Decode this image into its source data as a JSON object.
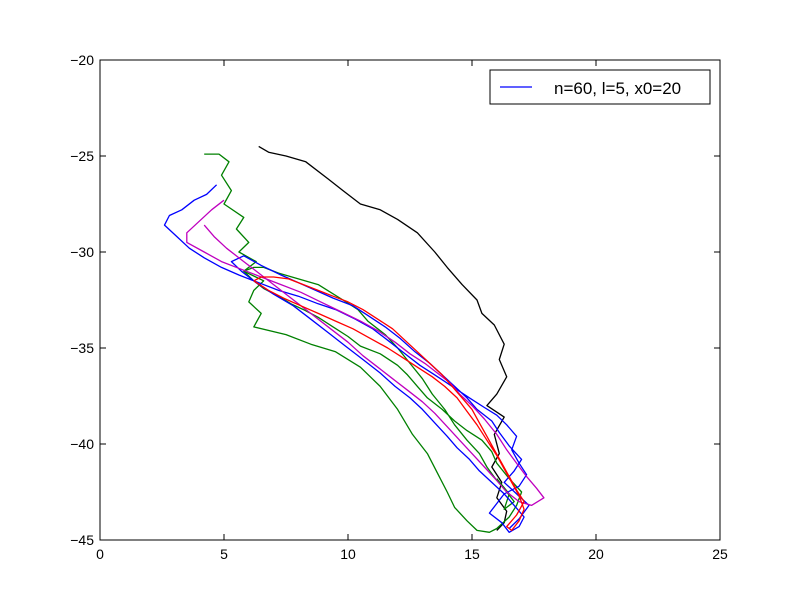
{
  "chart_data": {
    "type": "line",
    "title": "",
    "xlabel": "",
    "ylabel": "",
    "xlim": [
      0,
      25
    ],
    "ylim": [
      -45,
      -20
    ],
    "x_ticks": [
      0,
      5,
      10,
      15,
      20,
      25
    ],
    "y_ticks": [
      -45,
      -40,
      -35,
      -30,
      -25,
      -20
    ],
    "x_tick_labels": [
      "0",
      "5",
      "10",
      "15",
      "20",
      "25"
    ],
    "y_tick_labels": [
      "−45",
      "−40",
      "−35",
      "−30",
      "−25",
      "−20"
    ],
    "grid": false,
    "legend": {
      "position": "top-right",
      "entries": [
        {
          "label": "n=60, l=5, x0=20",
          "color": "#0000ff"
        }
      ]
    },
    "series": [
      {
        "color": "#000000",
        "x": [
          6.4,
          6.8,
          7.5,
          8.3,
          9.2,
          9.8,
          10.5,
          11.3,
          12.0,
          12.8,
          13.5,
          14.0,
          14.6,
          15.2,
          15.4,
          15.9,
          16.3,
          16.1,
          16.4,
          16.0,
          15.6,
          16.3,
          15.9,
          16.1,
          15.8,
          16.2,
          16.0,
          16.4,
          16.3,
          16.0
        ],
        "y": [
          -24.5,
          -24.8,
          -25.0,
          -25.3,
          -26.2,
          -26.8,
          -27.5,
          -27.8,
          -28.3,
          -29.0,
          -30.0,
          -30.8,
          -31.7,
          -32.5,
          -33.2,
          -33.8,
          -34.8,
          -35.6,
          -36.5,
          -37.4,
          -38.0,
          -38.6,
          -39.5,
          -40.5,
          -41.2,
          -42.0,
          -42.8,
          -43.5,
          -44.1,
          -44.5
        ]
      },
      {
        "color": "#008000",
        "x": [
          4.2,
          4.8,
          5.2,
          4.9,
          5.3,
          5.0,
          5.8,
          5.5,
          6.0,
          5.6,
          6.3,
          5.8,
          6.6,
          6.2,
          6.0,
          6.5,
          6.2,
          7.5,
          8.5,
          9.5,
          10.5,
          11.3,
          12.0,
          12.6,
          13.2,
          13.6,
          14.0,
          14.3,
          14.8,
          15.2,
          15.7,
          16.0,
          16.5,
          16.8,
          17.0,
          16.5,
          16.0,
          15.8,
          15.4,
          14.8,
          14.3,
          13.8,
          13.2,
          12.8,
          12.4,
          12.0,
          11.3,
          10.5,
          10.0,
          9.4,
          8.8,
          8.2,
          7.7,
          7.2,
          6.6,
          6.2,
          5.8,
          6.2,
          6.6,
          7.2,
          8.0,
          8.8,
          9.3,
          9.8,
          10.4,
          10.8,
          11.5,
          12.0,
          12.5,
          13.0,
          13.4,
          13.9,
          14.3,
          14.8,
          15.3,
          15.6,
          16.0,
          16.4,
          16.7,
          16.3,
          16.5,
          16.0
        ],
        "y": [
          -24.9,
          -24.9,
          -25.3,
          -26.0,
          -26.8,
          -27.5,
          -28.2,
          -28.8,
          -29.5,
          -30.0,
          -30.5,
          -31.0,
          -31.5,
          -32.0,
          -32.6,
          -33.2,
          -33.9,
          -34.3,
          -34.8,
          -35.2,
          -36.0,
          -37.0,
          -38.2,
          -39.5,
          -40.5,
          -41.5,
          -42.5,
          -43.3,
          -44.0,
          -44.5,
          -44.6,
          -44.4,
          -43.8,
          -43.2,
          -42.5,
          -41.8,
          -41.0,
          -40.4,
          -39.8,
          -39.3,
          -38.8,
          -38.2,
          -37.6,
          -37.0,
          -36.4,
          -35.9,
          -35.3,
          -34.9,
          -34.4,
          -33.9,
          -33.4,
          -33.0,
          -32.7,
          -32.3,
          -31.9,
          -31.5,
          -31.0,
          -30.8,
          -30.8,
          -31.1,
          -31.4,
          -31.7,
          -32.1,
          -32.5,
          -33.0,
          -33.6,
          -34.3,
          -35.0,
          -35.8,
          -36.6,
          -37.4,
          -38.2,
          -39.0,
          -39.8,
          -40.5,
          -41.2,
          -41.9,
          -42.5,
          -43.0,
          -43.4,
          -42.6,
          -41.8
        ]
      },
      {
        "color": "#0000ff",
        "x": [
          4.7,
          4.3,
          3.8,
          3.3,
          2.8,
          2.6,
          3.1,
          3.6,
          4.2,
          4.9,
          5.6,
          6.4,
          7.2,
          8.0,
          8.8,
          9.5,
          10.3,
          11.0,
          11.7,
          12.3,
          12.9,
          13.5,
          14.2,
          14.9,
          15.5,
          16.0,
          16.4,
          16.8,
          16.6,
          16.9,
          17.2,
          16.9,
          16.3,
          16.0,
          15.7,
          16.2,
          16.5,
          16.9,
          17.1,
          16.7,
          16.3,
          15.8,
          15.3,
          14.9,
          14.4,
          14.0,
          13.5,
          13.0,
          12.5,
          11.9,
          11.3,
          10.6,
          9.9,
          9.2,
          8.5,
          7.8,
          7.0,
          6.3,
          5.7,
          5.3,
          5.8,
          6.5,
          7.3,
          8.0,
          8.7,
          9.4,
          10.2,
          10.8,
          11.5,
          12.1,
          12.7,
          13.3,
          13.8,
          14.3,
          14.8,
          15.2,
          15.8,
          16.1,
          16.5,
          17.0,
          16.7,
          16.3,
          16.8,
          17.3,
          16.9,
          16.5
        ],
        "y": [
          -26.5,
          -27.0,
          -27.3,
          -27.8,
          -28.1,
          -28.6,
          -29.2,
          -29.8,
          -30.3,
          -30.8,
          -31.2,
          -31.6,
          -32.0,
          -32.3,
          -32.7,
          -33.0,
          -33.5,
          -34.0,
          -34.7,
          -35.3,
          -35.9,
          -36.4,
          -37.0,
          -37.6,
          -38.1,
          -38.5,
          -39.0,
          -39.6,
          -40.3,
          -41.0,
          -41.6,
          -42.2,
          -42.6,
          -43.1,
          -43.6,
          -44.1,
          -44.6,
          -44.3,
          -43.8,
          -43.2,
          -42.6,
          -42.0,
          -41.4,
          -40.8,
          -40.2,
          -39.6,
          -38.9,
          -38.2,
          -37.6,
          -37.0,
          -36.3,
          -35.6,
          -34.9,
          -34.2,
          -33.5,
          -32.8,
          -32.2,
          -31.6,
          -31.0,
          -30.5,
          -30.2,
          -30.7,
          -31.2,
          -31.6,
          -32.0,
          -32.4,
          -32.8,
          -33.3,
          -33.9,
          -34.5,
          -35.2,
          -35.8,
          -36.4,
          -37.0,
          -37.6,
          -38.2,
          -38.8,
          -39.4,
          -40.1,
          -40.8,
          -41.4,
          -42.0,
          -42.6,
          -43.2,
          -43.9,
          -44.4
        ]
      },
      {
        "color": "#bf00bf",
        "x": [
          5.0,
          4.5,
          4.0,
          3.5,
          3.5,
          4.2,
          4.9,
          5.7,
          6.5,
          7.3,
          8.1,
          8.9,
          9.7,
          10.5,
          11.2,
          11.9,
          12.5,
          13.1,
          13.6,
          14.1,
          14.5,
          15.0,
          15.5,
          16.0,
          16.4,
          16.8,
          17.2,
          17.6,
          17.9,
          17.4,
          16.9,
          16.4,
          16.0,
          15.5,
          15.0,
          14.5,
          14.0,
          13.5,
          13.0,
          12.4,
          11.8,
          11.2,
          10.6,
          10.0,
          9.3,
          8.6,
          7.9,
          7.2,
          6.5,
          5.8,
          5.1,
          4.6,
          4.2
        ],
        "y": [
          -27.3,
          -27.8,
          -28.4,
          -29.0,
          -29.5,
          -30.0,
          -30.5,
          -30.9,
          -31.3,
          -31.7,
          -32.1,
          -32.6,
          -33.1,
          -33.6,
          -34.1,
          -34.7,
          -35.3,
          -35.8,
          -36.3,
          -36.8,
          -37.4,
          -38.0,
          -38.7,
          -39.5,
          -40.3,
          -41.0,
          -41.7,
          -42.3,
          -42.8,
          -43.2,
          -43.0,
          -42.5,
          -41.9,
          -41.2,
          -40.5,
          -39.8,
          -39.1,
          -38.4,
          -37.8,
          -37.2,
          -36.6,
          -36.0,
          -35.4,
          -34.7,
          -34.0,
          -33.3,
          -32.6,
          -31.9,
          -31.2,
          -30.5,
          -29.8,
          -29.2,
          -28.6
        ]
      },
      {
        "color": "#ff0000",
        "x": [
          6.2,
          6.8,
          7.4,
          8.1,
          8.8,
          9.5,
          10.2,
          10.9,
          11.6,
          12.2,
          12.8,
          13.4,
          13.9,
          14.4,
          14.8,
          15.2,
          15.6,
          16.0,
          16.3,
          16.6,
          16.9,
          17.1,
          16.9,
          16.6,
          16.4,
          16.8,
          17.1,
          16.8,
          16.5,
          16.2,
          15.9,
          15.6,
          15.3,
          15.0,
          14.6,
          14.2,
          13.8,
          13.3,
          12.8,
          12.3,
          11.8,
          11.2,
          10.6,
          10.0,
          9.4,
          8.8,
          8.2,
          7.6,
          7.0,
          6.5,
          6.2
        ],
        "y": [
          -31.5,
          -32.0,
          -32.4,
          -32.8,
          -33.2,
          -33.6,
          -34.0,
          -34.5,
          -35.0,
          -35.5,
          -36.0,
          -36.5,
          -37.0,
          -37.6,
          -38.3,
          -39.0,
          -39.8,
          -40.6,
          -41.3,
          -42.0,
          -42.7,
          -43.4,
          -44.0,
          -44.5,
          -44.3,
          -43.7,
          -43.0,
          -42.4,
          -41.7,
          -41.0,
          -40.3,
          -39.6,
          -38.9,
          -38.2,
          -37.6,
          -37.0,
          -36.4,
          -35.8,
          -35.2,
          -34.6,
          -34.0,
          -33.5,
          -33.0,
          -32.6,
          -32.3,
          -32.0,
          -31.7,
          -31.4,
          -31.3,
          -31.3,
          -31.5
        ]
      }
    ]
  }
}
